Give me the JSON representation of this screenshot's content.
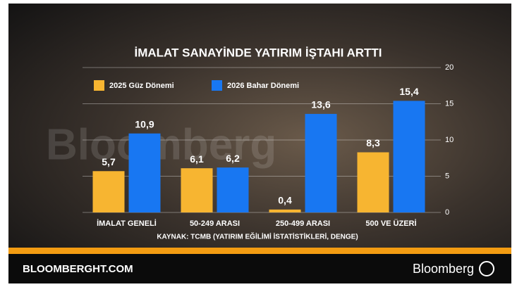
{
  "chart_data": {
    "type": "bar",
    "title": "İMALAT SANAYİNDE YATIRIM İŞTAHI ARTTI",
    "watermark": "Bloomberg",
    "source": "KAYNAK: TCMB (YATIRIM EĞİLİMİ İSTATİSTİKLERİ, DENGE)",
    "categories": [
      "İMALAT GENELİ",
      "50-249 ARASI",
      "250-499 ARASI",
      "500 VE ÜZERİ"
    ],
    "series": [
      {
        "name": "2025 Güz Dönemi",
        "color": "#f7b531",
        "values": [
          5.7,
          6.1,
          0.4,
          8.3
        ],
        "value_labels": [
          "5,7",
          "6,1",
          "0,4",
          "8,3"
        ]
      },
      {
        "name": "2026 Bahar Dönemi",
        "color": "#1877f2",
        "values": [
          10.9,
          6.2,
          13.6,
          15.4
        ],
        "value_labels": [
          "10,9",
          "6,2",
          "13,6",
          "15,4"
        ]
      }
    ],
    "ylim": [
      0,
      20
    ],
    "yticks": [
      0,
      5,
      10,
      15,
      20
    ],
    "y_axis_side": "right",
    "grid": true
  },
  "footer": {
    "site": "BLOOMBERGHT.COM",
    "brand": "Bloomberg"
  }
}
